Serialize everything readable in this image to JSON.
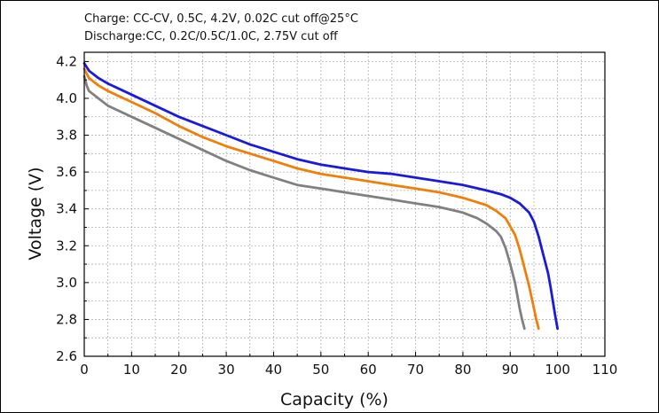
{
  "chart_data": {
    "type": "line",
    "title": "",
    "annotations": [
      "Charge: CC-CV, 0.5C, 4.2V, 0.02C cut off@25°C",
      "Discharge:CC, 0.2C/0.5C/1.0C, 2.75V cut off"
    ],
    "xlabel": "Capacity (%)",
    "ylabel": "Voltage (V)",
    "xlim": [
      0,
      110
    ],
    "ylim": [
      2.6,
      4.25
    ],
    "xticks": [
      0,
      10,
      20,
      30,
      40,
      50,
      60,
      70,
      80,
      90,
      100,
      110
    ],
    "yticks": [
      2.6,
      2.8,
      3.0,
      3.2,
      3.4,
      3.6,
      3.8,
      4.0,
      4.2
    ],
    "grid": true,
    "legend": "none",
    "series": [
      {
        "color": "#1a1adb",
        "x": [
          0,
          1,
          3,
          5,
          10,
          15,
          20,
          25,
          30,
          35,
          40,
          45,
          50,
          55,
          60,
          65,
          70,
          75,
          80,
          85,
          88,
          90,
          92,
          94,
          95,
          96,
          97,
          98,
          98.5,
          99,
          99.5,
          100
        ],
        "y": [
          4.19,
          4.15,
          4.11,
          4.08,
          4.02,
          3.96,
          3.9,
          3.85,
          3.8,
          3.75,
          3.71,
          3.67,
          3.64,
          3.62,
          3.6,
          3.59,
          3.57,
          3.55,
          3.53,
          3.5,
          3.48,
          3.46,
          3.43,
          3.38,
          3.33,
          3.25,
          3.15,
          3.05,
          2.98,
          2.9,
          2.82,
          2.75
        ]
      },
      {
        "color": "#f07f09",
        "x": [
          0,
          1,
          3,
          5,
          10,
          15,
          20,
          25,
          30,
          35,
          40,
          45,
          50,
          55,
          60,
          65,
          70,
          75,
          80,
          85,
          87,
          89,
          91,
          92,
          93,
          94,
          94.5,
          95,
          95.5,
          96
        ],
        "y": [
          4.16,
          4.11,
          4.07,
          4.04,
          3.98,
          3.92,
          3.85,
          3.79,
          3.74,
          3.7,
          3.66,
          3.62,
          3.59,
          3.57,
          3.55,
          3.53,
          3.51,
          3.49,
          3.46,
          3.42,
          3.39,
          3.35,
          3.26,
          3.18,
          3.08,
          2.98,
          2.92,
          2.86,
          2.8,
          2.75
        ]
      },
      {
        "color": "#808080",
        "x": [
          0,
          0.5,
          1,
          3,
          5,
          10,
          15,
          20,
          25,
          30,
          35,
          40,
          45,
          50,
          55,
          60,
          65,
          70,
          75,
          80,
          83,
          85,
          87,
          88,
          89,
          90,
          91,
          91.5,
          92,
          92.5,
          93
        ],
        "y": [
          4.12,
          4.07,
          4.04,
          4.0,
          3.96,
          3.9,
          3.84,
          3.78,
          3.72,
          3.66,
          3.61,
          3.57,
          3.53,
          3.51,
          3.49,
          3.47,
          3.45,
          3.43,
          3.41,
          3.38,
          3.35,
          3.32,
          3.28,
          3.25,
          3.19,
          3.1,
          3.0,
          2.93,
          2.86,
          2.8,
          2.75
        ]
      }
    ]
  }
}
